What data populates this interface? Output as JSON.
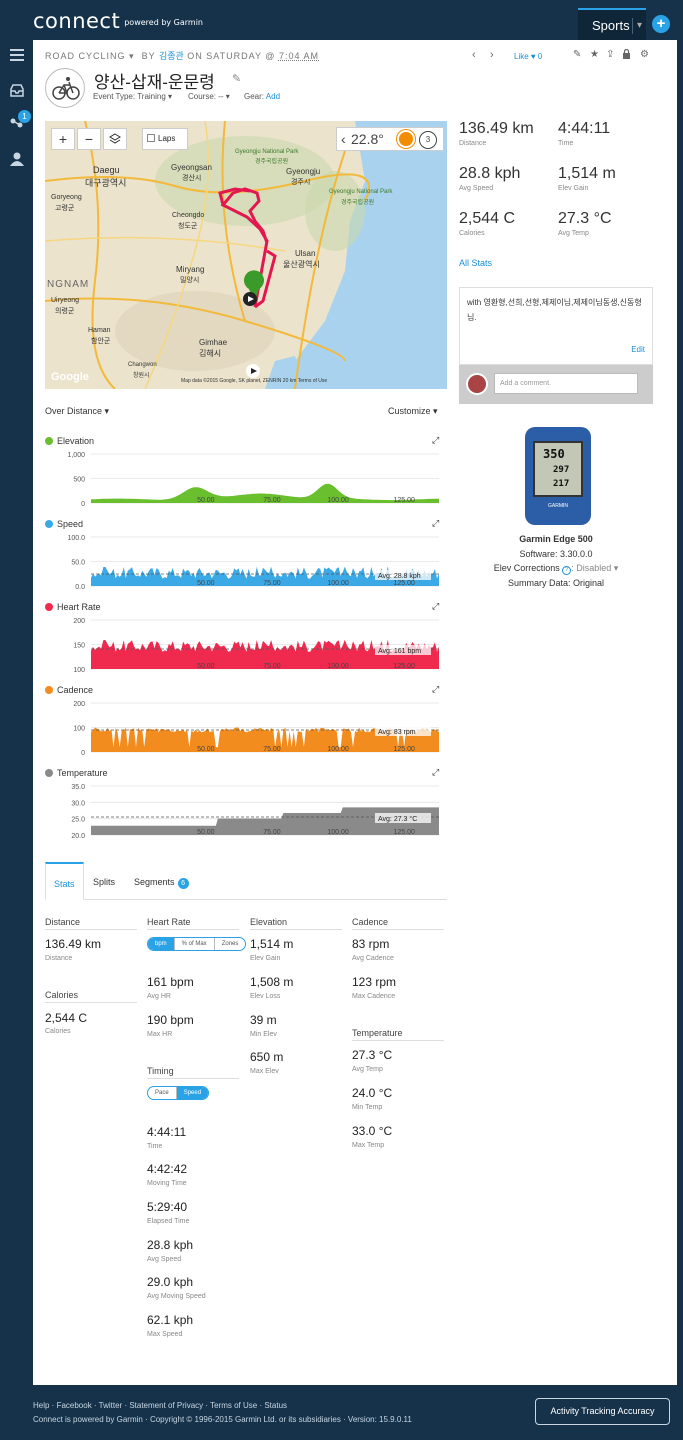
{
  "brand": {
    "logo": "connect",
    "powered": "powered by Garmin"
  },
  "nav": {
    "sports": "Sports",
    "dropdown": "▾",
    "add": "+",
    "badge": "1"
  },
  "activity": {
    "type": "ROAD CYCLING",
    "by": "BY",
    "user": "김종관",
    "on": "ON SATURDAY @",
    "time": "7:04 AM",
    "like": "Like",
    "like_count": "0",
    "title": "양산-삽재-운문령",
    "event_type_label": "Event Type:",
    "event_type": "Training ▾",
    "course_label": "Course:",
    "course": "-- ▾",
    "gear_label": "Gear:",
    "gear_add": "Add"
  },
  "map": {
    "laps": "Laps",
    "temp": "22.8°",
    "lap_count": "3",
    "footer": "Map data ©2015 Google, SK planet, ZENRIN   20 km   Terms of Use",
    "google": "Google",
    "labels": [
      {
        "t": "Daegu"
      },
      {
        "t": "대구광역시"
      },
      {
        "t": "Gyeongsan"
      },
      {
        "t": "경산시"
      },
      {
        "t": "Gyeongju"
      },
      {
        "t": "경주시"
      },
      {
        "t": "Ulsan"
      },
      {
        "t": "울산광역시"
      },
      {
        "t": "Miryang"
      },
      {
        "t": "밀양시"
      },
      {
        "t": "Cheongdo"
      },
      {
        "t": "청도군"
      },
      {
        "t": "Gimhae"
      },
      {
        "t": "김해시"
      },
      {
        "t": "Haman"
      },
      {
        "t": "함안군"
      },
      {
        "t": "Changwon"
      },
      {
        "t": "창원시"
      },
      {
        "t": "Uiryeong"
      },
      {
        "t": "의령군"
      },
      {
        "t": "Goryeong"
      },
      {
        "t": "고령군"
      },
      {
        "t": "NGNAM"
      },
      {
        "t": "Gyeongju National Park"
      },
      {
        "t": "경주국립공원"
      },
      {
        "t": "Gyeongju National Park"
      },
      {
        "t": "경주국립공원"
      }
    ]
  },
  "charts": {
    "over_distance": "Over Distance ▾",
    "customize": "Customize ▾",
    "elevation": {
      "title": "Elevation",
      "yticks": [
        "1,000",
        "500",
        "0"
      ],
      "xticks": [
        "50.00",
        "75.00",
        "100.00",
        "125.00"
      ],
      "color": "#6abf2e"
    },
    "speed": {
      "title": "Speed",
      "yticks": [
        "100.0",
        "50.0",
        "0.0"
      ],
      "xticks": [
        "50.00",
        "75.00",
        "100.00",
        "125.00"
      ],
      "avg": "Avg: 28.8 kph",
      "color": "#3ba9e6"
    },
    "heart_rate": {
      "title": "Heart Rate",
      "yticks": [
        "200",
        "150",
        "100"
      ],
      "xticks": [
        "50.00",
        "75.00",
        "100.00",
        "125.00"
      ],
      "avg": "Avg: 161 bpm",
      "color": "#f0294f"
    },
    "cadence": {
      "title": "Cadence",
      "yticks": [
        "200",
        "100",
        "0"
      ],
      "xticks": [
        "50.00",
        "75.00",
        "100.00",
        "125.00"
      ],
      "avg": "Avg: 83 rpm",
      "color": "#f28c1e"
    },
    "temperature": {
      "title": "Temperature",
      "yticks": [
        "35.0",
        "30.0",
        "25.0",
        "20.0"
      ],
      "xticks": [
        "50.00",
        "75.00",
        "100.00",
        "125.00"
      ],
      "avg": "Avg: 27.3 °C",
      "color": "#8a8a8a"
    }
  },
  "summary": {
    "distance": {
      "v": "136.49 km",
      "l": "Distance"
    },
    "time": {
      "v": "4:44:11",
      "l": "Time"
    },
    "avg_speed": {
      "v": "28.8 kph",
      "l": "Avg Speed"
    },
    "elev_gain": {
      "v": "1,514 m",
      "l": "Elev Gain"
    },
    "calories": {
      "v": "2,544 C",
      "l": "Calories"
    },
    "avg_temp": {
      "v": "27.3 °C",
      "l": "Avg Temp"
    },
    "all_stats": "All Stats"
  },
  "note": {
    "text": "with 영환형,선희,선형,제제이님,제제이님동생,신동형님.",
    "edit": "Edit"
  },
  "comment": {
    "placeholder": "Add a comment."
  },
  "device": {
    "screen_top": "350",
    "screen_mid": "297",
    "screen_bot": "217",
    "name": "Garmin Edge 500",
    "software": "Software: 3.30.0.0",
    "elev_corr_label": "Elev Corrections",
    "elev_corr": "Disabled ▾",
    "summary_data": "Summary Data: Original",
    "brand": "GARMIN"
  },
  "tabs": {
    "stats": "Stats",
    "splits": "Splits",
    "segments": "Segments",
    "segments_count": "6"
  },
  "stats": {
    "distance_h": "Distance",
    "distance_v": "136.49 km",
    "distance_l": "Distance",
    "calories_h": "Calories",
    "calories_v": "2,544 C",
    "calories_l": "Calories",
    "hr_h": "Heart Rate",
    "hr_pill": [
      "bpm",
      "% of Max",
      "Zones"
    ],
    "avg_hr_v": "161 bpm",
    "avg_hr_l": "Avg HR",
    "max_hr_v": "190 bpm",
    "max_hr_l": "Max HR",
    "timing_h": "Timing",
    "timing_pill": [
      "Pace",
      "Speed"
    ],
    "time_v": "4:44:11",
    "time_l": "Time",
    "moving_v": "4:42:42",
    "moving_l": "Moving Time",
    "elapsed_v": "5:29:40",
    "elapsed_l": "Elapsed Time",
    "avgspd_v": "28.8 kph",
    "avgspd_l": "Avg Speed",
    "avgmov_v": "29.0 kph",
    "avgmov_l": "Avg Moving Speed",
    "maxspd_v": "62.1 kph",
    "maxspd_l": "Max Speed",
    "elev_h": "Elevation",
    "egain_v": "1,514 m",
    "egain_l": "Elev Gain",
    "eloss_v": "1,508 m",
    "eloss_l": "Elev Loss",
    "emin_v": "39 m",
    "emin_l": "Min Elev",
    "emax_v": "650 m",
    "emax_l": "Max Elev",
    "cad_h": "Cadence",
    "avgcad_v": "83 rpm",
    "avgcad_l": "Avg Cadence",
    "maxcad_v": "123 rpm",
    "maxcad_l": "Max Cadence",
    "temp_h": "Temperature",
    "avgt_v": "27.3 °C",
    "avgt_l": "Avg Temp",
    "mint_v": "24.0 °C",
    "mint_l": "Min Temp",
    "maxt_v": "33.0 °C",
    "maxt_l": "Max Temp"
  },
  "footer": {
    "links": "Help · Facebook · Twitter · Statement of Privacy · Terms of Use · Status",
    "copyright": "Connect is powered by Garmin · Copyright © 1996-2015 Garmin Ltd. or its subsidiaries · Version: 15.9.0.11",
    "ata": "Activity Tracking Accuracy"
  }
}
